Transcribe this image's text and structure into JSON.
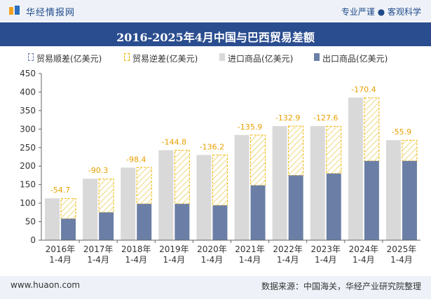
{
  "header": {
    "brand": "华经情报网",
    "slogan": "专业严谨 ● 客观科学"
  },
  "footer": {
    "site": "www.huaon.com",
    "source": "数据来源：中国海关，华经产业研究院整理"
  },
  "colors": {
    "import": "#d9d9d9",
    "export": "#6b7fa6",
    "deficit_line": "#f0b400",
    "label": "#e8a000",
    "header_bg": "#2a4d8f"
  },
  "chart_data": {
    "type": "bar",
    "title": "2016-2025年4月中国与巴西贸易差额",
    "categories": [
      "2016年\n1-4月",
      "2017年\n1-4月",
      "2018年\n1-4月",
      "2019年\n1-4月",
      "2020年\n1-4月",
      "2021年\n1-4月",
      "2022年\n1-4月",
      "2023年\n1-4月",
      "2024年\n1-4月",
      "2025年\n1-4月"
    ],
    "series": [
      {
        "name": "贸易顺差(亿美元)",
        "values": [
          0,
          0,
          0,
          0,
          0,
          0,
          0,
          0,
          0,
          0
        ]
      },
      {
        "name": "贸易逆差(亿美元)",
        "values": [
          -54.7,
          -90.3,
          -98.4,
          -144.8,
          -136.2,
          -135.9,
          -132.9,
          -127.6,
          -170.4,
          -55.9
        ]
      },
      {
        "name": "进口商品(亿美元)",
        "values": [
          113,
          166,
          196,
          243,
          230,
          284,
          308,
          308,
          385,
          270
        ]
      },
      {
        "name": "出口商品(亿美元)",
        "values": [
          58,
          75,
          98,
          98,
          94,
          148,
          175,
          180,
          214,
          214
        ]
      }
    ],
    "data_labels": [
      "-54.7",
      "-90.3",
      "-98.4",
      "-144.8",
      "-136.2",
      "-135.9",
      "-132.9",
      "-127.6",
      "-170.4",
      "-55.9"
    ],
    "y_ticks": [
      "0",
      "50",
      "100",
      "150",
      "200",
      "250",
      "300",
      "350",
      "400",
      "450"
    ],
    "ylim": [
      0,
      450
    ],
    "grid": false,
    "legend_position": "top"
  }
}
